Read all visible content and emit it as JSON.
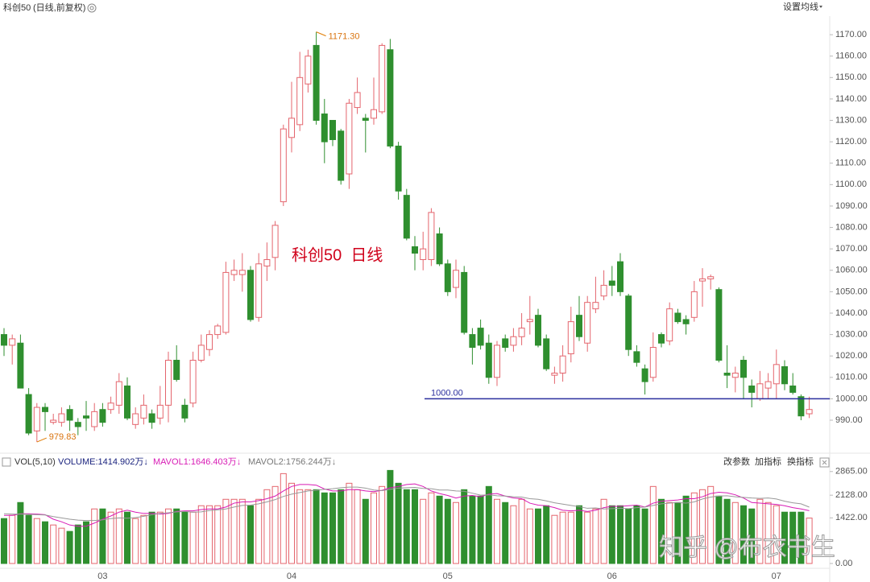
{
  "chart_data": {
    "type": "candlestick",
    "title": "科创50",
    "subtitle": "(日线,前复权)",
    "menu": "设置均线",
    "annotation_text": "科创50  日线",
    "watermark": "知乎 @布衣书生",
    "high_label": {
      "value": 1171.3,
      "label": "1171.30"
    },
    "low_label": {
      "value": 979.83,
      "label": "979.83"
    },
    "hline": {
      "value": 1000,
      "label": "1000.00",
      "color": "#2b2f9e"
    },
    "up_color": "#e4656d",
    "down_color": "#2f8f2f",
    "categories": [
      null,
      null,
      null,
      null,
      null,
      null,
      null,
      null,
      null,
      null,
      null,
      null,
      "03",
      null,
      null,
      null,
      null,
      null,
      null,
      null,
      null,
      null,
      null,
      null,
      null,
      null,
      null,
      null,
      null,
      null,
      null,
      null,
      null,
      null,
      null,
      "04",
      null,
      null,
      null,
      null,
      null,
      null,
      null,
      null,
      null,
      null,
      null,
      null,
      null,
      null,
      null,
      null,
      null,
      null,
      "05",
      null,
      null,
      null,
      null,
      null,
      null,
      null,
      null,
      null,
      null,
      null,
      null,
      null,
      null,
      null,
      null,
      null,
      null,
      null,
      "06",
      null,
      null,
      null,
      null,
      null,
      null,
      null,
      null,
      null,
      null,
      null,
      null,
      null,
      null,
      null,
      null,
      null,
      null,
      null,
      "07",
      null,
      null,
      null,
      null
    ],
    "open": [
      1030,
      1025,
      1026,
      1002,
      985,
      996,
      989,
      989,
      995,
      989,
      992,
      987,
      995,
      995,
      997,
      1006,
      988,
      991,
      993,
      991,
      997,
      1018,
      997,
      998,
      1018,
      1023,
      1030,
      1031,
      1058,
      1058,
      1060,
      1038,
      1062,
      1066,
      1092,
      1122,
      1128,
      1147,
      1165,
      1133,
      1130,
      1125,
      1105,
      1136,
      1131,
      1131,
      1134,
      1163,
      1118,
      1095,
      1071,
      1065,
      1065,
      1077,
      1063,
      1052,
      1059,
      1030,
      1033,
      1026,
      1010,
      1028,
      1025,
      1029,
      1036,
      1039,
      1028,
      1011,
      1012,
      1021,
      1039,
      1026,
      1042,
      1048,
      1055,
      1064,
      1048,
      1022,
      1014,
      1010,
      1030,
      1027,
      1040,
      1037,
      1038,
      1055,
      1056,
      1051,
      1012,
      1010,
      1018,
      1006,
      1000,
      1005,
      1007,
      1015,
      1006,
      1001,
      993
    ],
    "high": [
      1033,
      1030,
      1030,
      1005,
      998,
      998,
      993,
      996,
      997,
      991,
      999,
      998,
      998,
      1001,
      1012,
      1010,
      996,
      1002,
      995,
      1006,
      1022,
      1025,
      1000,
      1022,
      1030,
      1032,
      1035,
      1064,
      1065,
      1068,
      1062,
      1068,
      1073,
      1083,
      1128,
      1148,
      1162,
      1163,
      1171.3,
      1140,
      1130,
      1126,
      1140,
      1150,
      1133,
      1150,
      1166,
      1168,
      1120,
      1098,
      1076,
      1078,
      1089,
      1080,
      1065,
      1065,
      1062,
      1033,
      1037,
      1030,
      1027,
      1030,
      1033,
      1040,
      1048,
      1042,
      1030,
      1015,
      1025,
      1043,
      1048,
      1048,
      1057,
      1060,
      1062,
      1068,
      1049,
      1025,
      1016,
      1031,
      1031,
      1045,
      1042,
      1039,
      1055,
      1061,
      1058,
      1052,
      1025,
      1015,
      1020,
      1009,
      1013,
      1012,
      1023,
      1018,
      1012,
      1002,
      1001
    ],
    "low": [
      1020,
      1016,
      1005,
      983,
      979.83,
      985,
      988,
      987,
      985,
      983,
      985,
      985,
      987,
      993,
      993,
      990,
      986,
      988,
      986,
      988,
      989,
      1008,
      989,
      996,
      1017,
      1020,
      1028,
      1030,
      1055,
      1050,
      1036,
      1036,
      1055,
      1060,
      1090,
      1115,
      1125,
      1143,
      1128,
      1110,
      1118,
      1100,
      1098,
      1133,
      1115,
      1128,
      1133,
      1117,
      1093,
      1074,
      1060,
      1060,
      1062,
      1062,
      1048,
      1047,
      1030,
      1016,
      1023,
      1007,
      1006,
      1022,
      1022,
      1025,
      1030,
      1024,
      1013,
      1007,
      1008,
      1017,
      1027,
      1022,
      1040,
      1046,
      1048,
      1048,
      1020,
      1015,
      1002,
      1008,
      1024,
      1025,
      1035,
      1030,
      1036,
      1043,
      1051,
      1017,
      1005,
      1003,
      1000,
      996,
      999,
      1000,
      1000,
      1004,
      1002,
      990,
      991
    ],
    "close": [
      1025,
      1028,
      1005,
      984,
      996,
      994,
      990,
      993,
      990,
      987,
      991,
      994,
      989,
      998,
      1008,
      991,
      993,
      997,
      989,
      997,
      1018,
      1009,
      991,
      1018,
      1025,
      1030,
      1034,
      1059,
      1060,
      1060,
      1037,
      1063,
      1065,
      1081,
      1126,
      1131,
      1150,
      1160,
      1130,
      1120,
      1121,
      1102,
      1138,
      1143,
      1130,
      1135,
      1165,
      1118,
      1097,
      1075,
      1068,
      1070,
      1087,
      1063,
      1050,
      1060,
      1031,
      1024,
      1025,
      1010,
      1025,
      1024,
      1029,
      1033,
      1037,
      1025,
      1014,
      1012,
      1020,
      1036,
      1029,
      1045,
      1045,
      1053,
      1053,
      1050,
      1023,
      1017,
      1008,
      1024,
      1026,
      1042,
      1036,
      1035,
      1050,
      1056,
      1057,
      1018,
      1011,
      1012,
      1010,
      1003,
      1007,
      1008,
      1016,
      1007,
      1003,
      992,
      995
    ],
    "ylim": [
      977.6,
      1186.2
    ],
    "yticks": [
      {
        "value": 990,
        "label": "990.00"
      },
      {
        "value": 1000,
        "label": "1000.00"
      },
      {
        "value": 1010,
        "label": "1010.00"
      },
      {
        "value": 1020,
        "label": "1020.00"
      },
      {
        "value": 1030,
        "label": "1030.00"
      },
      {
        "value": 1040,
        "label": "1040.00"
      },
      {
        "value": 1050,
        "label": "1050.00"
      },
      {
        "value": 1060,
        "label": "1060.00"
      },
      {
        "value": 1070,
        "label": "1070.00"
      },
      {
        "value": 1080,
        "label": "1080.00"
      },
      {
        "value": 1090,
        "label": "1090.00"
      },
      {
        "value": 1100,
        "label": "1100.00"
      },
      {
        "value": 1110,
        "label": "1110.00"
      },
      {
        "value": 1120,
        "label": "1120.00"
      },
      {
        "value": 1130,
        "label": "1130.00"
      },
      {
        "value": 1140,
        "label": "1140.00"
      },
      {
        "value": 1150,
        "label": "1150.00"
      },
      {
        "value": 1160,
        "label": "1160.00"
      },
      {
        "value": 1170,
        "label": "1170.00"
      }
    ],
    "volume": {
      "indicator": "VOL(5,10)",
      "volume_label": "VOLUME:1414.902万↓",
      "ma5_label": "MAVOL1:1646.403万↓",
      "ma10_label": "MAVOL2:1756.244万↓",
      "ma5_color": "#d81bb5",
      "ma10_color": "#999999",
      "buttons": [
        "改参数",
        "加指标",
        "换指标"
      ],
      "values": [
        1400,
        1500,
        1900,
        1500,
        1400,
        1300,
        1200,
        1100,
        1000,
        1200,
        1300,
        1700,
        1700,
        1600,
        1700,
        1600,
        1400,
        1500,
        1600,
        1600,
        1700,
        1700,
        1600,
        1600,
        1800,
        1800,
        1800,
        2000,
        2000,
        2000,
        1800,
        2000,
        2300,
        2400,
        2800,
        2500,
        2300,
        2300,
        2300,
        2200,
        2200,
        2300,
        2500,
        2300,
        2000,
        2200,
        2400,
        2900,
        2500,
        2300,
        2300,
        2000,
        2200,
        2100,
        2000,
        1900,
        2300,
        2100,
        2100,
        2400,
        2000,
        1900,
        1800,
        2000,
        1700,
        1700,
        1800,
        1500,
        1600,
        1600,
        1800,
        1600,
        1700,
        2000,
        1800,
        1800,
        1700,
        1800,
        1700,
        2400,
        2000,
        1900,
        1900,
        2100,
        2200,
        2300,
        2400,
        2100,
        2000,
        1900,
        1800,
        1700,
        2000,
        1900,
        1800,
        1600,
        1600,
        1600,
        1414.902
      ],
      "ma5": [
        1500,
        1500,
        1550,
        1550,
        1540,
        1520,
        1380,
        1300,
        1200,
        1160,
        1160,
        1260,
        1380,
        1480,
        1600,
        1660,
        1600,
        1560,
        1560,
        1540,
        1560,
        1620,
        1640,
        1640,
        1680,
        1700,
        1700,
        1760,
        1880,
        1920,
        1920,
        1960,
        2020,
        2100,
        2260,
        2400,
        2460,
        2460,
        2440,
        2320,
        2260,
        2260,
        2300,
        2300,
        2260,
        2240,
        2280,
        2360,
        2400,
        2460,
        2480,
        2400,
        2260,
        2180,
        2120,
        2040,
        2100,
        2120,
        2080,
        2160,
        2180,
        2100,
        2040,
        2020,
        1880,
        1820,
        1800,
        1740,
        1660,
        1640,
        1660,
        1620,
        1660,
        1740,
        1780,
        1780,
        1800,
        1820,
        1760,
        1880,
        1940,
        1960,
        1980,
        2020,
        2020,
        2080,
        2180,
        2220,
        2200,
        2140,
        2040,
        1900,
        1880,
        1860,
        1840,
        1800,
        1740,
        1700,
        1646.403
      ],
      "ma10": [
        1550,
        1540,
        1540,
        1530,
        1520,
        1510,
        1460,
        1420,
        1380,
        1350,
        1340,
        1340,
        1360,
        1400,
        1420,
        1410,
        1430,
        1470,
        1520,
        1560,
        1580,
        1610,
        1620,
        1600,
        1610,
        1650,
        1670,
        1700,
        1760,
        1810,
        1820,
        1860,
        1920,
        1990,
        2090,
        2160,
        2210,
        2260,
        2280,
        2310,
        2330,
        2360,
        2380,
        2380,
        2350,
        2290,
        2270,
        2310,
        2350,
        2360,
        2370,
        2340,
        2330,
        2290,
        2290,
        2260,
        2250,
        2190,
        2130,
        2140,
        2110,
        2100,
        2080,
        2070,
        2020,
        2000,
        1950,
        1890,
        1850,
        1810,
        1770,
        1720,
        1730,
        1700,
        1710,
        1720,
        1710,
        1740,
        1760,
        1810,
        1860,
        1880,
        1900,
        1880,
        1920,
        2010,
        2070,
        2100,
        2110,
        2080,
        2060,
        2040,
        2030,
        2040,
        2010,
        1940,
        1890,
        1860,
        1756.244
      ],
      "ylim": [
        0,
        2960
      ],
      "yticks": [
        {
          "value": 0,
          "label": "0.00"
        },
        {
          "value": 1422,
          "label": "1422.00"
        },
        {
          "value": 2128,
          "label": "2128.00"
        },
        {
          "value": 2865,
          "label": "2865.00"
        }
      ]
    }
  }
}
